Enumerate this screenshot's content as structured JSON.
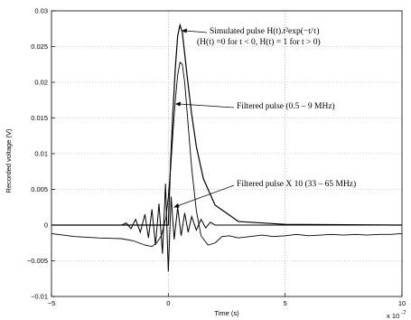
{
  "chart_data": {
    "type": "line",
    "xlabel": "Time (s)",
    "ylabel": "Recorded voltage (V)",
    "x_multiplier_label": "x 10",
    "x_multiplier_exp": "-7",
    "xlim": [
      -5,
      10
    ],
    "ylim": [
      -0.01,
      0.03
    ],
    "x_ticks": [
      "−5",
      "0",
      "5",
      "10"
    ],
    "x_tick_values": [
      -5,
      0,
      5,
      10
    ],
    "y_ticks": [
      "−0.01",
      "−0.005",
      "0",
      "0.005",
      "0.01",
      "0.015",
      "0.02",
      "0.025",
      "0.03"
    ],
    "y_tick_values": [
      -0.01,
      -0.005,
      0,
      0.005,
      0.01,
      0.015,
      0.02,
      0.025,
      0.03
    ],
    "grid": true,
    "series": [
      {
        "kind": "simulated",
        "x": [
          -5,
          -0.3,
          -0.05,
          0.0,
          0.05,
          0.1,
          0.2,
          0.3,
          0.4,
          0.5,
          0.6,
          0.7,
          0.8,
          1.0,
          1.2,
          1.5,
          2.0,
          3.0,
          5.0,
          10.0
        ],
        "values": [
          0,
          0,
          0,
          0,
          0.0045,
          0.009,
          0.016,
          0.022,
          0.0265,
          0.028,
          0.027,
          0.024,
          0.021,
          0.0155,
          0.011,
          0.0065,
          0.0028,
          0.0005,
          0.0001,
          0
        ]
      },
      {
        "kind": "filtered",
        "x": [
          -5,
          -4,
          -3,
          -2,
          -1.5,
          -1,
          -0.7,
          -0.5,
          -0.3,
          -0.1,
          0,
          0.1,
          0.2,
          0.3,
          0.4,
          0.5,
          0.6,
          0.7,
          0.8,
          0.9,
          1.0,
          1.2,
          1.4,
          1.7,
          2.0,
          2.3,
          2.6,
          3.0,
          3.5,
          4.0,
          4.5,
          5.0,
          5.5,
          6.0,
          6.5,
          7.0,
          7.5,
          8.0,
          8.5,
          9.0,
          9.5,
          10.0
        ],
        "values": [
          -0.0012,
          -0.0016,
          -0.0018,
          -0.0019,
          -0.0022,
          -0.0028,
          -0.003,
          -0.0025,
          -0.0015,
          0.001,
          0.004,
          0.008,
          0.013,
          0.0175,
          0.021,
          0.0228,
          0.0225,
          0.02,
          0.016,
          0.012,
          0.008,
          0.002,
          -0.0015,
          -0.0028,
          -0.0025,
          -0.0016,
          -0.0015,
          -0.0018,
          -0.0016,
          -0.0014,
          -0.0016,
          -0.0015,
          -0.0013,
          -0.0015,
          -0.0014,
          -0.0013,
          -0.0014,
          -0.0013,
          -0.0014,
          -0.0013,
          -0.0013,
          -0.0012
        ]
      },
      {
        "kind": "filtered_x10",
        "x": [
          -5,
          -2.0,
          -1.8,
          -1.6,
          -1.4,
          -1.2,
          -1.0,
          -0.85,
          -0.7,
          -0.55,
          -0.4,
          -0.25,
          -0.12,
          0.0,
          0.12,
          0.25,
          0.4,
          0.55,
          0.7,
          0.85,
          1.0,
          1.2,
          1.4,
          1.6,
          1.8,
          2.0,
          10.0
        ],
        "values": [
          0,
          0,
          0.0003,
          -0.0005,
          0.0008,
          -0.001,
          0.0015,
          -0.0018,
          0.0022,
          -0.0028,
          0.003,
          -0.004,
          0.0058,
          -0.0065,
          0.004,
          -0.002,
          0.0025,
          -0.0015,
          0.0017,
          -0.001,
          0.0012,
          -0.0007,
          0.0008,
          -0.0004,
          0.0004,
          0,
          0
        ]
      }
    ],
    "annotations": [
      {
        "line1": "Simulated pulse H(t).t²exp(−t/τ)",
        "line2": "(H(t) =0 for t < 0, H(t) = 1 for t > 0)"
      },
      {
        "line1": "Filtered pulse (0.5 – 9 MHz)"
      },
      {
        "line1": "Filtered pulse X 10 (33 – 65 MHz)"
      }
    ]
  }
}
